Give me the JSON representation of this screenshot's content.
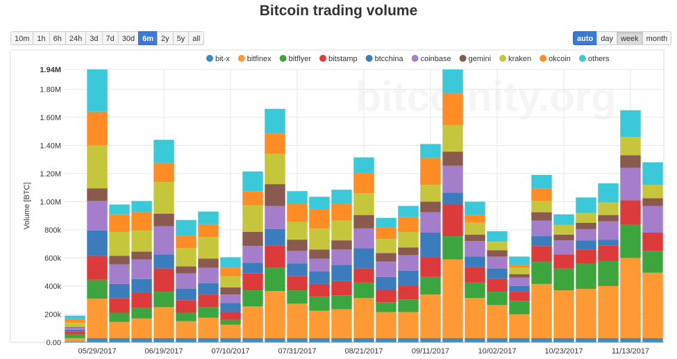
{
  "title": "Bitcoin trading volume",
  "range_buttons": [
    {
      "label": "10m",
      "active": false
    },
    {
      "label": "1h",
      "active": false
    },
    {
      "label": "6h",
      "active": false
    },
    {
      "label": "24h",
      "active": false
    },
    {
      "label": "3d",
      "active": false
    },
    {
      "label": "7d",
      "active": false
    },
    {
      "label": "30d",
      "active": false
    },
    {
      "label": "6m",
      "active": true
    },
    {
      "label": "2y",
      "active": false
    },
    {
      "label": "5y",
      "active": false
    },
    {
      "label": "all",
      "active": false
    }
  ],
  "period_buttons": [
    {
      "label": "auto",
      "state": "active"
    },
    {
      "label": "day",
      "state": "normal"
    },
    {
      "label": "week",
      "state": "pressed"
    },
    {
      "label": "month",
      "state": "normal"
    }
  ],
  "watermark": "bitcoinity.org",
  "chart_data": {
    "type": "bar",
    "stacked": true,
    "title": "Bitcoin trading volume",
    "ylabel": "Volume [BTC]",
    "ylim": [
      0,
      1940000
    ],
    "yticks": [
      {
        "value": 0,
        "label": "0.00"
      },
      {
        "value": 200000,
        "label": "200k"
      },
      {
        "value": 400000,
        "label": "400k"
      },
      {
        "value": 600000,
        "label": "600k"
      },
      {
        "value": 800000,
        "label": "800k"
      },
      {
        "value": 1000000,
        "label": "1.00M"
      },
      {
        "value": 1200000,
        "label": "1.20M"
      },
      {
        "value": 1400000,
        "label": "1.40M"
      },
      {
        "value": 1600000,
        "label": "1.60M"
      },
      {
        "value": 1800000,
        "label": "1.80M"
      },
      {
        "value": 1940000,
        "label": "1.94M"
      }
    ],
    "xticks": [
      {
        "index": 1.5,
        "label": "05/29/2017"
      },
      {
        "index": 4.5,
        "label": "06/19/2017"
      },
      {
        "index": 7.5,
        "label": "07/10/2017"
      },
      {
        "index": 10.5,
        "label": "07/31/2017"
      },
      {
        "index": 13.5,
        "label": "08/21/2017"
      },
      {
        "index": 16.5,
        "label": "09/11/2017"
      },
      {
        "index": 19.5,
        "label": "10/02/2017"
      },
      {
        "index": 22.5,
        "label": "10/23/2017"
      },
      {
        "index": 25.5,
        "label": "11/13/2017"
      }
    ],
    "grid": true,
    "legend_position": "top",
    "bar_count": 27,
    "series": [
      {
        "name": "bit-x",
        "color": "#3c8dc4",
        "values": [
          5000,
          30000,
          30000,
          30000,
          30000,
          30000,
          30000,
          30000,
          30000,
          30000,
          30000,
          30000,
          30000,
          30000,
          30000,
          30000,
          30000,
          30000,
          30000,
          30000,
          30000,
          30000,
          30000,
          30000,
          30000,
          30000,
          30000
        ]
      },
      {
        "name": "bitfinex",
        "color": "#ff9933",
        "values": [
          25000,
          280000,
          115000,
          140000,
          220000,
          120000,
          145000,
          95000,
          225000,
          335000,
          245000,
          195000,
          205000,
          285000,
          185000,
          185000,
          310000,
          560000,
          285000,
          235000,
          170000,
          385000,
          340000,
          350000,
          370000,
          570000,
          465000
        ]
      },
      {
        "name": "bitflyer",
        "color": "#3da53d",
        "values": [
          25000,
          135000,
          65000,
          75000,
          110000,
          60000,
          75000,
          35000,
          115000,
          165000,
          95000,
          100000,
          100000,
          110000,
          70000,
          90000,
          125000,
          165000,
          110000,
          95000,
          95000,
          160000,
          155000,
          180000,
          180000,
          235000,
          155000
        ]
      },
      {
        "name": "bitstamp",
        "color": "#dd3b3b",
        "values": [
          20000,
          170000,
          105000,
          110000,
          165000,
          90000,
          90000,
          55000,
          120000,
          160000,
          100000,
          90000,
          100000,
          100000,
          90000,
          95000,
          140000,
          225000,
          110000,
          90000,
          65000,
          110000,
          100000,
          100000,
          110000,
          175000,
          130000
        ]
      },
      {
        "name": "btcchina",
        "color": "#3a7cbc",
        "values": [
          15000,
          180000,
          100000,
          95000,
          100000,
          80000,
          80000,
          65000,
          75000,
          115000,
          90000,
          90000,
          115000,
          145000,
          90000,
          110000,
          175000,
          85000,
          75000,
          75000,
          40000,
          70000,
          0,
          65000,
          40000,
          0,
          0
        ]
      },
      {
        "name": "coinbase",
        "color": "#a57ecb",
        "values": [
          15000,
          210000,
          140000,
          140000,
          200000,
          110000,
          110000,
          60000,
          120000,
          165000,
          90000,
          90000,
          110000,
          140000,
          110000,
          110000,
          145000,
          190000,
          110000,
          85000,
          60000,
          110000,
          100000,
          80000,
          130000,
          230000,
          190000
        ]
      },
      {
        "name": "gemini",
        "color": "#8b5a4e",
        "values": [
          5000,
          90000,
          60000,
          55000,
          90000,
          50000,
          65000,
          50000,
          100000,
          155000,
          80000,
          65000,
          65000,
          95000,
          60000,
          55000,
          75000,
          100000,
          45000,
          45000,
          25000,
          60000,
          40000,
          45000,
          45000,
          90000,
          55000
        ]
      },
      {
        "name": "kraken",
        "color": "#c6c63c",
        "values": [
          30000,
          305000,
          170000,
          150000,
          225000,
          130000,
          155000,
          80000,
          190000,
          215000,
          125000,
          150000,
          140000,
          155000,
          100000,
          110000,
          120000,
          190000,
          85000,
          60000,
          45000,
          80000,
          70000,
          70000,
          90000,
          130000,
          95000
        ]
      },
      {
        "name": "okcoin",
        "color": "#ff8c24",
        "values": [
          25000,
          240000,
          125000,
          130000,
          135000,
          90000,
          90000,
          60000,
          100000,
          145000,
          130000,
          135000,
          120000,
          145000,
          80000,
          105000,
          190000,
          225000,
          55000,
          0,
          20000,
          90000,
          0,
          0,
          0,
          0,
          0
        ]
      },
      {
        "name": "others",
        "color": "#3bc8d8",
        "values": [
          25000,
          300000,
          70000,
          80000,
          165000,
          110000,
          90000,
          75000,
          140000,
          175000,
          90000,
          90000,
          100000,
          110000,
          70000,
          80000,
          100000,
          200000,
          95000,
          75000,
          60000,
          95000,
          75000,
          110000,
          135000,
          190000,
          160000
        ]
      }
    ]
  }
}
